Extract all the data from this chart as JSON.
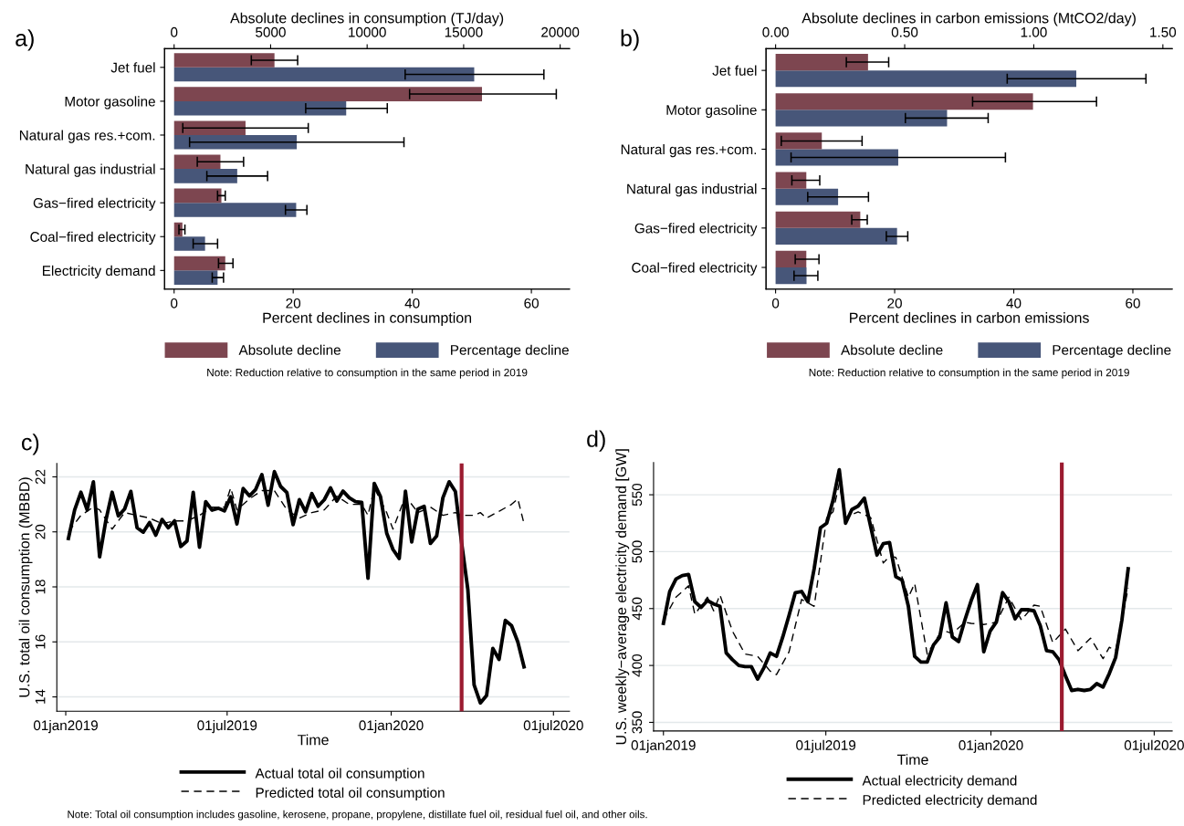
{
  "chart_data": [
    {
      "type": "bar",
      "orientation": "horizontal",
      "title": "a)",
      "xlabel": "Percent declines in consumption",
      "x2label": "Absolute declines in consumption (TJ/day)",
      "categories": [
        "Jet fuel",
        "Motor gasoline",
        "Natural gas res.+com.",
        "Natural gas industrial",
        "Gas−fired electricity",
        "Coal−fired electricity",
        "Electricity demand"
      ],
      "series": [
        {
          "name": "Absolute decline",
          "color": "#7d4650",
          "axis": "x2",
          "values": [
            5200,
            15950,
            3700,
            2400,
            2450,
            430,
            2650
          ],
          "errors": [
            [
              4000,
              6400
            ],
            [
              12200,
              19800
            ],
            [
              450,
              6950
            ],
            [
              1200,
              3600
            ],
            [
              2250,
              2650
            ],
            [
              250,
              560
            ],
            [
              2300,
              3050
            ]
          ]
        },
        {
          "name": "Percentage decline",
          "color": "#475679",
          "values": [
            50.4,
            28.9,
            20.6,
            10.6,
            20.5,
            5.2,
            7.3
          ],
          "errors": [
            [
              38.8,
              62.1
            ],
            [
              22.1,
              35.8
            ],
            [
              2.6,
              38.6
            ],
            [
              5.5,
              15.7
            ],
            [
              18.7,
              22.3
            ],
            [
              3.2,
              7.3
            ],
            [
              6.4,
              8.3
            ]
          ]
        }
      ],
      "xlim": [
        -1.6,
        66.4
      ],
      "xticks": [
        0,
        20,
        40,
        60
      ],
      "x2lim": [
        -494,
        20484
      ],
      "x2ticks": [
        0,
        5000,
        10000,
        15000,
        20000
      ],
      "legend": "bottom",
      "annotations": [
        "Note: Reduction relative to consumption in the same period in 2019"
      ]
    },
    {
      "type": "bar",
      "orientation": "horizontal",
      "title": "b)",
      "xlabel": "Percent declines in carbon emissions",
      "x2label": "Absolute declines in carbon emissions (MtCO2/day)",
      "categories": [
        "Jet fuel",
        "Motor gasoline",
        "Natural gas res.+com.",
        "Natural gas industrial",
        "Gas−fired electricity",
        "Coal−fired electricity"
      ],
      "series": [
        {
          "name": "Absolute decline",
          "color": "#7d4650",
          "axis": "x2",
          "values": [
            0.358,
            0.997,
            0.179,
            0.119,
            0.328,
            0.119
          ],
          "errors": [
            [
              0.274,
              0.438
            ],
            [
              0.763,
              1.243
            ],
            [
              0.022,
              0.335
            ],
            [
              0.063,
              0.171
            ],
            [
              0.295,
              0.355
            ],
            [
              0.076,
              0.168
            ]
          ]
        },
        {
          "name": "Percentage decline",
          "color": "#475679",
          "values": [
            50.5,
            28.8,
            20.6,
            10.5,
            20.4,
            5.2
          ],
          "errors": [
            [
              38.9,
              62.2
            ],
            [
              21.8,
              35.7
            ],
            [
              2.6,
              38.6
            ],
            [
              5.4,
              15.6
            ],
            [
              18.6,
              22.2
            ],
            [
              3.1,
              7.1
            ]
          ]
        }
      ],
      "xlim": [
        -1.6,
        66.6
      ],
      "xticks": [
        0,
        20,
        40,
        60
      ],
      "x2lim": [
        -0.037,
        1.536
      ],
      "x2ticks": [
        {
          "value": 0,
          "label": "0.00"
        },
        {
          "value": 0.5,
          "label": "0.50"
        },
        {
          "value": 1,
          "label": "1.00"
        },
        {
          "value": 1.5,
          "label": "1.50"
        }
      ],
      "legend": "bottom",
      "annotations": [
        "Note: Reduction relative to consumption in the same period in 2019"
      ]
    },
    {
      "type": "line",
      "title": "c)",
      "xlabel": "Time",
      "ylabel": "U.S. total oil consumption (MBBD)",
      "x": [
        "2019-01-04",
        "2019-01-11",
        "2019-01-18",
        "2019-01-25",
        "2019-02-01",
        "2019-02-08",
        "2019-02-15",
        "2019-02-22",
        "2019-03-01",
        "2019-03-08",
        "2019-03-15",
        "2019-03-22",
        "2019-03-29",
        "2019-04-05",
        "2019-04-12",
        "2019-04-19",
        "2019-04-26",
        "2019-05-03",
        "2019-05-10",
        "2019-05-17",
        "2019-05-24",
        "2019-05-31",
        "2019-06-07",
        "2019-06-14",
        "2019-06-21",
        "2019-06-28",
        "2019-07-05",
        "2019-07-12",
        "2019-07-19",
        "2019-07-26",
        "2019-08-02",
        "2019-08-09",
        "2019-08-16",
        "2019-08-23",
        "2019-08-30",
        "2019-09-06",
        "2019-09-13",
        "2019-09-20",
        "2019-09-27",
        "2019-10-04",
        "2019-10-11",
        "2019-10-18",
        "2019-10-25",
        "2019-11-01",
        "2019-11-08",
        "2019-11-15",
        "2019-11-22",
        "2019-11-29",
        "2019-12-06",
        "2019-12-13",
        "2019-12-20",
        "2019-12-27",
        "2020-01-03",
        "2020-01-10",
        "2020-01-17",
        "2020-01-24",
        "2020-01-31",
        "2020-02-07",
        "2020-02-14",
        "2020-02-21",
        "2020-02-28",
        "2020-03-06",
        "2020-03-13",
        "2020-03-20",
        "2020-03-27",
        "2020-04-03",
        "2020-04-10",
        "2020-04-17",
        "2020-04-24",
        "2020-05-01",
        "2020-05-08",
        "2020-05-15",
        "2020-05-22",
        "2020-05-29"
      ],
      "series": [
        {
          "name": "Actual total oil consumption",
          "color": "#000000",
          "line_style": "solid",
          "values": [
            19.76,
            20.8,
            21.44,
            20.8,
            21.82,
            19.09,
            20.42,
            21.44,
            20.58,
            20.83,
            21.47,
            20.15,
            19.99,
            20.34,
            19.88,
            20.45,
            20.15,
            20.4,
            19.47,
            19.67,
            21.44,
            19.44,
            21.1,
            20.79,
            20.86,
            20.76,
            21.28,
            20.29,
            21.58,
            21.31,
            21.54,
            22.08,
            20.97,
            22.19,
            21.65,
            21.43,
            20.26,
            21.17,
            20.73,
            21.39,
            20.93,
            21.17,
            21.6,
            21.12,
            21.48,
            21.24,
            21.1,
            21.07,
            18.31,
            21.76,
            21.28,
            19.95,
            19.36,
            19.03,
            21.48,
            19.63,
            20.83,
            20.93,
            19.58,
            19.85,
            21.24,
            21.82,
            21.47,
            19.6,
            17.9,
            14.44,
            13.78,
            14.05,
            15.76,
            15.36,
            16.78,
            16.59,
            16.0,
            15.09
          ]
        },
        {
          "name": "Predicted total oil consumption",
          "color": "#000000",
          "line_style": "dashed",
          "x": [
            "2019-01-04",
            "2019-01-18",
            "2019-02-01",
            "2019-02-08",
            "2019-02-22",
            "2019-03-08",
            "2019-03-22",
            "2019-04-05",
            "2019-04-19",
            "2019-05-03",
            "2019-05-17",
            "2019-05-31",
            "2019-06-14",
            "2019-06-28",
            "2019-07-05",
            "2019-07-12",
            "2019-07-26",
            "2019-08-09",
            "2019-08-23",
            "2019-09-06",
            "2019-09-20",
            "2019-10-04",
            "2019-10-18",
            "2019-11-01",
            "2019-11-15",
            "2019-11-29",
            "2019-12-06",
            "2019-12-13",
            "2019-12-27",
            "2020-01-03",
            "2020-01-17",
            "2020-01-31",
            "2020-02-14",
            "2020-02-28",
            "2020-03-13",
            "2020-03-20",
            "2020-04-03",
            "2020-04-10",
            "2020-04-17",
            "2020-05-15",
            "2020-05-22",
            "2020-05-29"
          ],
          "values": [
            20.0,
            20.6,
            20.9,
            20.8,
            20.1,
            20.7,
            20.6,
            20.5,
            20.3,
            20.4,
            20.4,
            20.6,
            20.9,
            20.9,
            21.6,
            20.8,
            21.2,
            21.5,
            21.5,
            20.8,
            20.5,
            20.7,
            20.8,
            21.3,
            21.0,
            21.0,
            20.6,
            21.6,
            20.7,
            20.1,
            21.3,
            20.7,
            20.9,
            20.6,
            20.7,
            20.6,
            20.6,
            20.7,
            20.5,
            21.0,
            21.2,
            20.3
          ]
        }
      ],
      "xlim": [
        "2018-12-22",
        "2020-07-19"
      ],
      "xticks": [
        {
          "value": "2019-01-01",
          "label": "01jan2019"
        },
        {
          "value": "2019-07-01",
          "label": "01jul2019"
        },
        {
          "value": "2020-01-01",
          "label": "01jan2020"
        },
        {
          "value": "2020-07-01",
          "label": "01jul2020"
        }
      ],
      "ylim": [
        13.48,
        22.49
      ],
      "yticks": [
        14,
        16,
        18,
        20,
        22
      ],
      "grid": "y",
      "legend": "bottom",
      "ref_lines": [
        {
          "axis": "x",
          "value": "2020-03-20",
          "color": "#9b1b30"
        }
      ],
      "annotations": [
        "Note: Total oil consumption includes gasoline, kerosene, propane, propylene, distillate fuel oil, residual fuel oil, and other oils."
      ]
    },
    {
      "type": "line",
      "title": "d)",
      "xlabel": "Time",
      "ylabel": "U.S. weekly−average electricity demand [GW]",
      "x": [
        "2019-01-01",
        "2019-01-08",
        "2019-01-15",
        "2019-01-22",
        "2019-01-29",
        "2019-02-05",
        "2019-02-12",
        "2019-02-19",
        "2019-02-26",
        "2019-03-05",
        "2019-03-12",
        "2019-03-19",
        "2019-03-26",
        "2019-04-02",
        "2019-04-09",
        "2019-04-16",
        "2019-04-23",
        "2019-04-30",
        "2019-05-07",
        "2019-05-14",
        "2019-05-21",
        "2019-05-28",
        "2019-06-04",
        "2019-06-11",
        "2019-06-18",
        "2019-06-25",
        "2019-07-02",
        "2019-07-09",
        "2019-07-16",
        "2019-07-23",
        "2019-07-30",
        "2019-08-06",
        "2019-08-13",
        "2019-08-20",
        "2019-08-27",
        "2019-09-03",
        "2019-09-10",
        "2019-09-17",
        "2019-09-24",
        "2019-10-01",
        "2019-10-08",
        "2019-10-15",
        "2019-10-22",
        "2019-10-29",
        "2019-11-05",
        "2019-11-12",
        "2019-11-19",
        "2019-11-26",
        "2019-12-03",
        "2019-12-10",
        "2019-12-17",
        "2019-12-24",
        "2019-12-31",
        "2020-01-07",
        "2020-01-14",
        "2020-01-21",
        "2020-01-28",
        "2020-02-04",
        "2020-02-11",
        "2020-02-18",
        "2020-02-25",
        "2020-03-03",
        "2020-03-10",
        "2020-03-17",
        "2020-03-24",
        "2020-03-31",
        "2020-04-07",
        "2020-04-14",
        "2020-04-21",
        "2020-04-28",
        "2020-05-05",
        "2020-05-12",
        "2020-05-19",
        "2020-05-26",
        "2020-06-02"
      ],
      "series": [
        {
          "name": "Actual electricity demand",
          "color": "#000000",
          "line_style": "solid",
          "values": [
            437,
            465,
            476,
            479,
            480,
            456,
            451,
            457,
            454,
            452,
            411,
            405,
            400,
            399,
            399,
            388,
            398,
            411,
            408,
            425,
            444,
            464,
            465,
            456,
            485,
            521,
            525,
            545,
            572,
            525,
            537,
            540,
            547,
            522,
            497,
            507,
            508,
            478,
            475,
            452,
            408,
            403,
            403,
            418,
            425,
            455,
            425,
            421,
            440,
            457,
            471,
            412,
            430,
            438,
            464,
            456,
            441,
            449,
            449,
            448,
            435,
            413,
            412,
            405,
            391,
            378,
            379,
            378,
            379,
            384,
            381,
            393,
            407,
            440,
            485
          ]
        },
        {
          "name": "Predicted electricity demand",
          "color": "#000000",
          "line_style": "dashed",
          "x": [
            "2019-01-01",
            "2019-01-15",
            "2019-01-29",
            "2019-02-05",
            "2019-02-19",
            "2019-02-26",
            "2019-03-05",
            "2019-03-19",
            "2019-04-02",
            "2019-04-16",
            "2019-04-30",
            "2019-05-07",
            "2019-05-21",
            "2019-06-04",
            "2019-06-18",
            "2019-07-02",
            "2019-07-09",
            "2019-07-16",
            "2019-07-23",
            "2019-08-06",
            "2019-08-20",
            "2019-09-03",
            "2019-09-10",
            "2019-09-17",
            "2019-10-01",
            "2019-10-08",
            "2019-10-22",
            "2019-11-05",
            "2019-11-12",
            "2019-11-19",
            "2019-12-03",
            "2019-12-10",
            "2019-12-24",
            "2020-01-07",
            "2020-01-21",
            "2020-02-04",
            "2020-02-18",
            "2020-02-25",
            "2020-03-10",
            "2020-03-24",
            "2020-04-07",
            "2020-04-21",
            "2020-05-05",
            "2020-05-12",
            "2020-05-19",
            "2020-06-02"
          ],
          "values": [
            440,
            460,
            470,
            445,
            460,
            448,
            462,
            430,
            410,
            408,
            395,
            392,
            412,
            458,
            452,
            530,
            535,
            560,
            530,
            535,
            530,
            490,
            496,
            495,
            460,
            472,
            410,
            428,
            430,
            428,
            438,
            437,
            436,
            438,
            460,
            440,
            453,
            452,
            420,
            432,
            413,
            424,
            406,
            416,
            413,
            468
          ]
        }
      ],
      "xlim": [
        "2018-12-21",
        "2020-07-21"
      ],
      "xticks": [
        {
          "value": "2019-01-01",
          "label": "01jan2019"
        },
        {
          "value": "2019-07-01",
          "label": "01jul2019"
        },
        {
          "value": "2020-01-01",
          "label": "01jan2020"
        },
        {
          "value": "2020-07-01",
          "label": "01jul2020"
        }
      ],
      "ylim": [
        342.4,
        578.3
      ],
      "yticks": [
        350,
        400,
        450,
        500,
        550
      ],
      "grid": "y",
      "legend": "bottom",
      "ref_lines": [
        {
          "axis": "x",
          "value": "2020-03-20",
          "color": "#9b1b30"
        }
      ]
    }
  ]
}
